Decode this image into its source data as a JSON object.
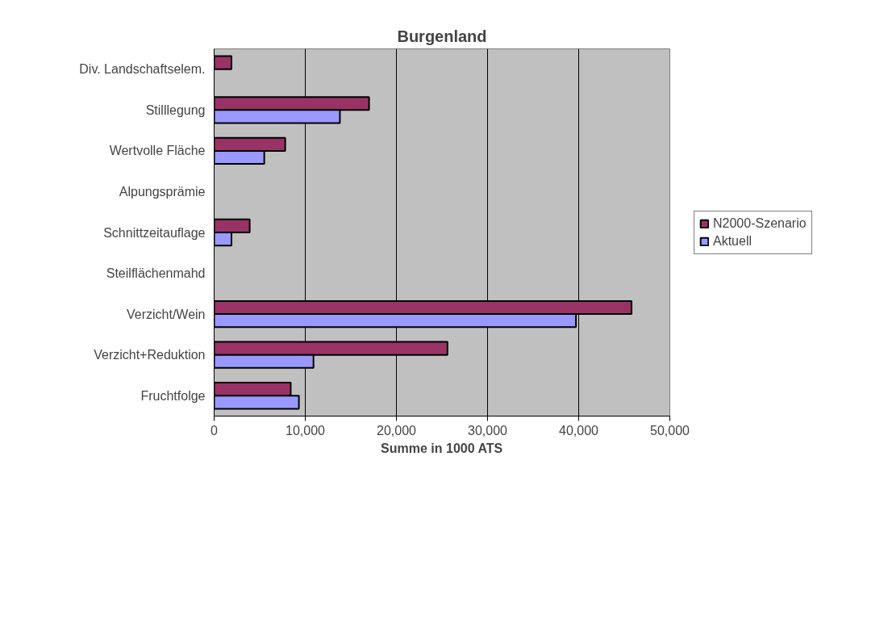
{
  "chart_data": {
    "type": "bar",
    "orientation": "horizontal",
    "title": "Burgenland",
    "xlabel": "Summe in 1000 ATS",
    "categories": [
      "Div. Landschaftselem.",
      "Stilllegung",
      "Wertvolle Fläche",
      "Alpungsprämie",
      "Schnittzeitauflage",
      "Steilflächenmahd",
      "Verzicht/Wein",
      "Verzicht+Reduktion",
      "Fruchtfolge"
    ],
    "series": [
      {
        "name": "N2000-Szenario",
        "color": "#993366",
        "values": [
          1900,
          17000,
          7800,
          null,
          3900,
          null,
          45800,
          25600,
          8400
        ]
      },
      {
        "name": "Aktuell",
        "color": "#9999ff",
        "values": [
          null,
          13800,
          5500,
          null,
          1900,
          null,
          39700,
          10900,
          9300
        ]
      }
    ],
    "xlim": [
      0,
      50000
    ],
    "xticks": [
      {
        "value": 0,
        "label": "0"
      },
      {
        "value": 10000,
        "label": "10,000"
      },
      {
        "value": 20000,
        "label": "20,000"
      },
      {
        "value": 30000,
        "label": "30,000"
      },
      {
        "value": 40000,
        "label": "40,000"
      },
      {
        "value": 50000,
        "label": "50,000"
      }
    ],
    "grid": "x",
    "legend": "right"
  }
}
